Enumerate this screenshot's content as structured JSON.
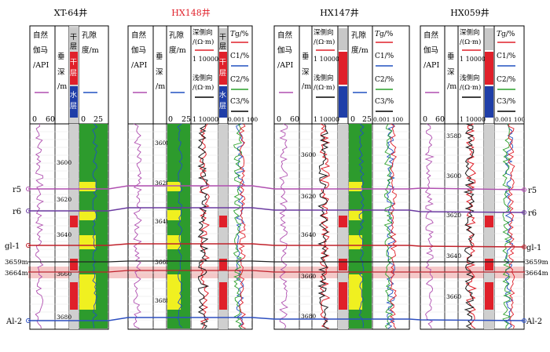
{
  "wells": [
    {
      "name": "XT-64井",
      "color": "#000000",
      "headers": [
        "自然伽马/API",
        "垂深/m",
        "干层",
        "干层",
        "水层",
        "孔隙度/m"
      ],
      "scales": [
        "0",
        "60",
        "0",
        "25"
      ],
      "depths": [
        "3600",
        "3620",
        "3640",
        "3660",
        "3680"
      ]
    },
    {
      "name": "HX148井",
      "color": "#e0202a",
      "headers": [
        "自然伽马/API",
        "垂深/m",
        "孔隙度/m",
        "深侧向/(Ω·m)",
        "浅侧向/(Ω·m)",
        "干层",
        "Tg/%",
        "C1/%",
        "C2/%",
        "C3/%"
      ],
      "scales": [
        "0",
        "25",
        "1",
        "10000",
        "1",
        "10000",
        "0.001",
        "100"
      ],
      "depths": [
        "3600",
        "3620",
        "3640",
        "3660",
        "3680"
      ]
    },
    {
      "name": "HX147井",
      "color": "#000000",
      "headers": [
        "自然伽马/API",
        "垂深/m",
        "深侧向/(Ω·m)",
        "浅侧向/(Ω·m)",
        "孔隙度/m",
        "Tg/%",
        "C1/%",
        "C2/%",
        "C3/%"
      ],
      "scales": [
        "0",
        "60",
        "1",
        "10000",
        "1",
        "10000",
        "0",
        "25",
        "0.001",
        "100"
      ],
      "depths": [
        "3600",
        "3620",
        "3640",
        "3660",
        "3680"
      ]
    },
    {
      "name": "HX059井",
      "color": "#000000",
      "headers": [
        "自然伽马/API",
        "垂深/m",
        "深侧向/(Ω·m)",
        "浅侧向/(Ω·m)",
        "Tg/%",
        "C1/%",
        "C2/%",
        "C3/%"
      ],
      "scales": [
        "0",
        "60",
        "1",
        "10000",
        "1",
        "10000",
        "0.001",
        "100"
      ],
      "depths": [
        "3580",
        "3600",
        "3620",
        "3640",
        "3660"
      ]
    }
  ],
  "markers_left": [
    "r5",
    "r6",
    "gl-1",
    "3659m",
    "3664m",
    "Al-2"
  ],
  "markers_right": [
    "r5",
    "r6",
    "gl-1",
    "3659m",
    "3664m",
    "Al-2"
  ],
  "colors": {
    "gr": "#b04fb0",
    "porosity": "#2d9b2d",
    "fill_yellow": "#f0f020",
    "deep": "#e0202a",
    "shallow": "#1a1a1a",
    "c1": "#2050c0",
    "c2": "#2aa02a",
    "dry": "#e0202a",
    "water": "#1f3ea8",
    "r5": "#b04fb0",
    "r6": "#6a3aa0",
    "gl1": "#c0202a",
    "al2": "#2d4fc0",
    "band": "#f2b5b5"
  }
}
